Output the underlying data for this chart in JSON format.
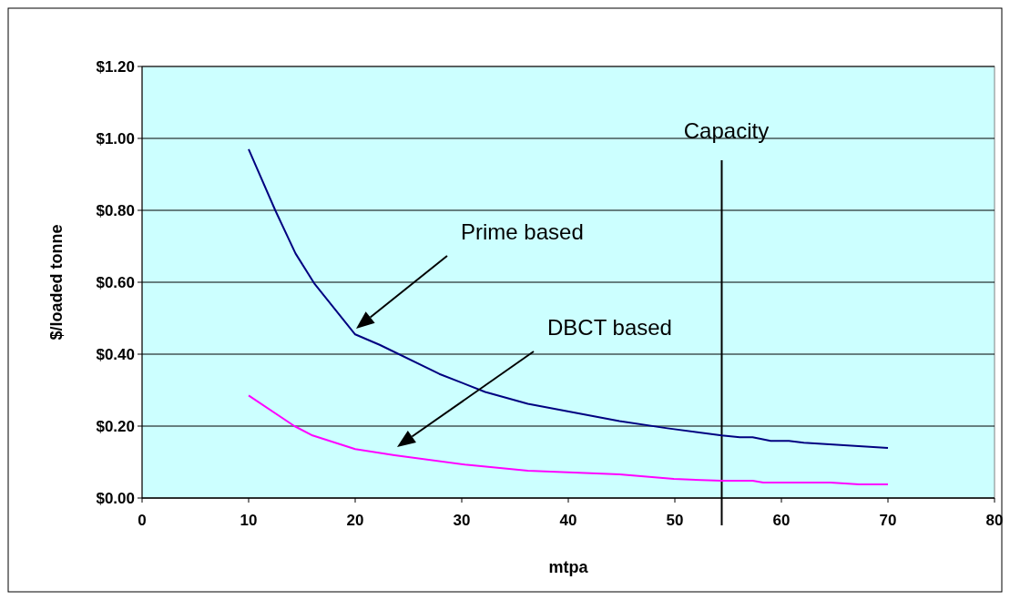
{
  "chart_data": {
    "type": "line",
    "xlabel": "mtpa",
    "ylabel": "$/loaded tonne",
    "xlim": [
      0,
      80
    ],
    "xticks": [
      0,
      10,
      20,
      30,
      40,
      50,
      60,
      70,
      80
    ],
    "ylim": [
      0,
      1.2
    ],
    "yticks": [
      {
        "value": 0,
        "label": "$0.00"
      },
      {
        "value": 0.2,
        "label": "$0.20"
      },
      {
        "value": 0.4,
        "label": "$0.40"
      },
      {
        "value": 0.6,
        "label": "$0.60"
      },
      {
        "value": 0.8,
        "label": "$0.80"
      },
      {
        "value": 1,
        "label": "$1.00"
      },
      {
        "value": 1.2,
        "label": "$1.20"
      }
    ],
    "grid": "y",
    "series": [
      {
        "color": "#000080",
        "x": [
          10,
          12.5,
          14.4,
          16.2,
          20,
          22.3,
          27.9,
          32.2,
          36.2,
          44.8,
          49.3,
          54.4,
          56.1,
          57.3,
          59,
          60.7,
          62.1,
          70
        ],
        "values": [
          0.97,
          0.8,
          0.68,
          0.595,
          0.455,
          0.426,
          0.345,
          0.295,
          0.262,
          0.214,
          0.194,
          0.174,
          0.169,
          0.169,
          0.159,
          0.159,
          0.154,
          0.139
        ]
      },
      {
        "color": "#ff00ff",
        "x": [
          10,
          14.3,
          16,
          20,
          23.7,
          30.3,
          36.2,
          44.8,
          49.9,
          54.4,
          57.3,
          58.3,
          64.6,
          67.3,
          70
        ],
        "values": [
          0.285,
          0.2,
          0.174,
          0.136,
          0.119,
          0.093,
          0.076,
          0.066,
          0.053,
          0.048,
          0.048,
          0.043,
          0.043,
          0.038,
          0.038
        ]
      }
    ],
    "ref_lines": [
      {
        "axis": "x",
        "value": 54.4,
        "label": "Capacity",
        "color": "#000000"
      }
    ],
    "annotations": [
      "Prime based",
      "DBCT based"
    ]
  }
}
